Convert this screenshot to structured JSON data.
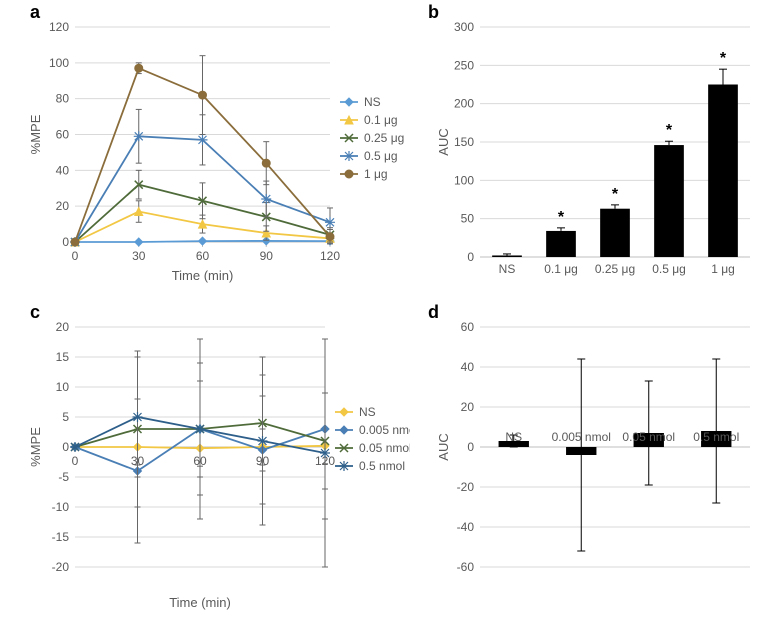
{
  "labels": {
    "a": "a",
    "b": "b",
    "c": "c",
    "d": "d"
  },
  "axis": {
    "a": {
      "x": "Time (min)",
      "y": "%MPE",
      "xlim": [
        0,
        120
      ],
      "ylim": [
        0,
        120
      ],
      "xticks": [
        0,
        30,
        60,
        90,
        120
      ],
      "yticks": [
        0,
        20,
        40,
        60,
        80,
        100,
        120
      ]
    },
    "b": {
      "y": "AUC",
      "ylim": [
        0,
        300
      ],
      "yticks": [
        0,
        50,
        100,
        150,
        200,
        250,
        300
      ]
    },
    "c": {
      "x": "Time (min)",
      "y": "%MPE",
      "xlim": [
        0,
        120
      ],
      "ylim": [
        -20,
        20
      ],
      "xticks": [
        0,
        30,
        60,
        90,
        120
      ],
      "yticks": [
        -20,
        -15,
        -10,
        -5,
        0,
        5,
        10,
        15,
        20
      ]
    },
    "d": {
      "y": "AUC",
      "ylim": [
        -60,
        60
      ],
      "yticks": [
        -60,
        -40,
        -20,
        0,
        20,
        40,
        60
      ]
    }
  },
  "panelA": {
    "type": "line",
    "x": [
      0,
      30,
      60,
      90,
      120
    ],
    "series": [
      {
        "name": "NS",
        "color": "#5b9bd5",
        "marker": "diamond",
        "y": [
          0,
          0,
          0.5,
          0.6,
          0.5
        ],
        "err": [
          0,
          0.5,
          0.5,
          0.5,
          0.5
        ]
      },
      {
        "name": "0.1 μg",
        "color": "#f2c744",
        "marker": "triangle",
        "y": [
          0,
          17,
          10,
          5,
          2
        ],
        "err": [
          0,
          6,
          5,
          4,
          3
        ]
      },
      {
        "name": "0.25 μg",
        "color": "#4f6b3a",
        "marker": "x",
        "y": [
          0,
          32,
          23,
          14,
          4
        ],
        "err": [
          0,
          8,
          10,
          8,
          4
        ]
      },
      {
        "name": "0.5 μg",
        "color": "#4a7fb5",
        "marker": "star",
        "y": [
          0,
          59,
          57,
          24,
          11
        ],
        "err": [
          0,
          15,
          14,
          10,
          8
        ]
      },
      {
        "name": "1 μg",
        "color": "#8a6d3b",
        "marker": "circle",
        "y": [
          0,
          97,
          82,
          44,
          3
        ],
        "err": [
          0,
          3,
          22,
          12,
          4
        ]
      }
    ]
  },
  "panelB": {
    "type": "bar",
    "categories": [
      "NS",
      "0.1 μg",
      "0.25 μg",
      "0.5 μg",
      "1 μg"
    ],
    "values": [
      2,
      34,
      63,
      146,
      225
    ],
    "err": [
      2,
      4,
      5,
      5,
      20
    ],
    "sig": [
      false,
      true,
      true,
      true,
      true
    ],
    "bar_color": "#000000"
  },
  "panelC": {
    "type": "line",
    "x": [
      0,
      30,
      60,
      90,
      120
    ],
    "series": [
      {
        "name": "NS",
        "color": "#f2c744",
        "marker": "diamond",
        "y": [
          0,
          0,
          -0.2,
          0,
          0.2
        ],
        "err": [
          0,
          3,
          3,
          3,
          3
        ]
      },
      {
        "name": "0.005 nmol",
        "color": "#4a7fb5",
        "marker": "diamond",
        "y": [
          0,
          -4,
          3,
          -0.5,
          3
        ],
        "err": [
          0,
          12,
          15,
          9,
          15
        ]
      },
      {
        "name": "0.05 nmol",
        "color": "#4f6b3a",
        "marker": "x",
        "y": [
          0,
          3,
          3,
          4,
          1
        ],
        "err": [
          0,
          13,
          8,
          8,
          8
        ]
      },
      {
        "name": "0.5 nmol",
        "color": "#2e5f8a",
        "marker": "star",
        "y": [
          0,
          5,
          3,
          1,
          -1
        ],
        "err": [
          0,
          10,
          11,
          14,
          19
        ]
      }
    ]
  },
  "panelD": {
    "type": "bar",
    "categories": [
      "NS",
      "0.005 nmol",
      "0.05 nmol",
      "0.5 nmol"
    ],
    "values": [
      3,
      -4,
      7,
      8
    ],
    "err": [
      3,
      48,
      26,
      36
    ],
    "bar_color": "#000000"
  },
  "style": {
    "grid_color": "#d9d9d9",
    "axis_color": "#bfbfbf",
    "text_color": "#595959",
    "tick_font": 12,
    "label_font": 13
  }
}
